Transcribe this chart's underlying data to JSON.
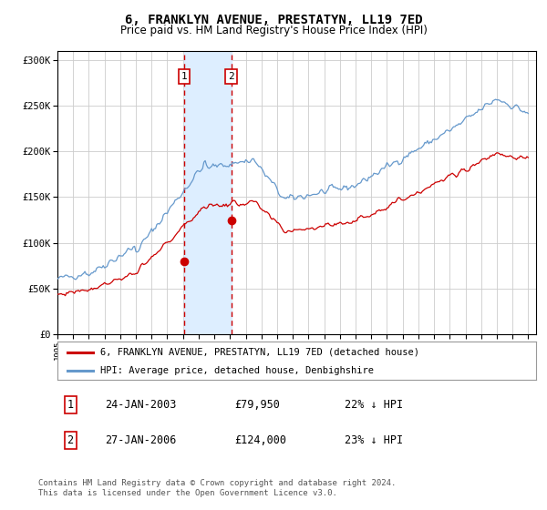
{
  "title": "6, FRANKLYN AVENUE, PRESTATYN, LL19 7ED",
  "subtitle": "Price paid vs. HM Land Registry's House Price Index (HPI)",
  "legend_line1": "6, FRANKLYN AVENUE, PRESTATYN, LL19 7ED (detached house)",
  "legend_line2": "HPI: Average price, detached house, Denbighshire",
  "transaction1_label": "1",
  "transaction1_date": "24-JAN-2003",
  "transaction1_price": "£79,950",
  "transaction1_hpi": "22% ↓ HPI",
  "transaction2_label": "2",
  "transaction2_date": "27-JAN-2006",
  "transaction2_price": "£124,000",
  "transaction2_hpi": "23% ↓ HPI",
  "footer": "Contains HM Land Registry data © Crown copyright and database right 2024.\nThis data is licensed under the Open Government Licence v3.0.",
  "red_color": "#cc0000",
  "blue_color": "#6699cc",
  "shading_color": "#ddeeff",
  "grid_color": "#cccccc",
  "background_color": "#ffffff",
  "ylim": [
    0,
    310000
  ],
  "yticks": [
    0,
    50000,
    100000,
    150000,
    200000,
    250000,
    300000
  ],
  "xlim_start": 1995.0,
  "xlim_end": 2025.5,
  "transaction1_x": 2003.07,
  "transaction1_y": 79950,
  "transaction2_x": 2006.07,
  "transaction2_y": 124000,
  "shade_x1": 2003.07,
  "shade_x2": 2006.07
}
